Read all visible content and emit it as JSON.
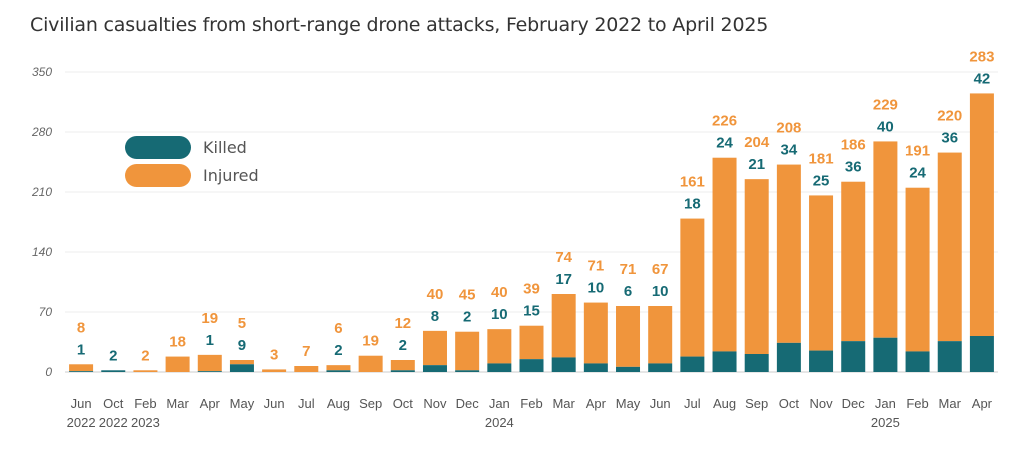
{
  "chart_data": {
    "type": "bar",
    "stacked": true,
    "title": "Civilian casualties from short-range drone attacks, February 2022 to April 2025",
    "ylim": [
      0,
      350
    ],
    "yticks": [
      0,
      70,
      140,
      210,
      280,
      350
    ],
    "grid": true,
    "legend_position": "top-left",
    "colors": {
      "Killed": "#166a74",
      "Injured": "#f0953c"
    },
    "categories": [
      [
        "Jun",
        "2022"
      ],
      [
        "Oct",
        "2022"
      ],
      [
        "Feb",
        "2023"
      ],
      [
        "Mar",
        ""
      ],
      [
        "Apr",
        ""
      ],
      [
        "May",
        ""
      ],
      [
        "Jun",
        ""
      ],
      [
        "Jul",
        ""
      ],
      [
        "Aug",
        ""
      ],
      [
        "Sep",
        ""
      ],
      [
        "Oct",
        ""
      ],
      [
        "Nov",
        ""
      ],
      [
        "Dec",
        ""
      ],
      [
        "Jan",
        "2024"
      ],
      [
        "Feb",
        ""
      ],
      [
        "Mar",
        ""
      ],
      [
        "Apr",
        ""
      ],
      [
        "May",
        ""
      ],
      [
        "Jun",
        ""
      ],
      [
        "Jul",
        ""
      ],
      [
        "Aug",
        ""
      ],
      [
        "Sep",
        ""
      ],
      [
        "Oct",
        ""
      ],
      [
        "Nov",
        ""
      ],
      [
        "Dec",
        ""
      ],
      [
        "Jan",
        "2025"
      ],
      [
        "Feb",
        ""
      ],
      [
        "Mar",
        ""
      ],
      [
        "Apr",
        ""
      ]
    ],
    "series": [
      {
        "name": "Killed",
        "values": [
          1,
          2,
          null,
          null,
          1,
          9,
          null,
          null,
          2,
          null,
          2,
          8,
          2,
          10,
          15,
          17,
          10,
          6,
          10,
          18,
          24,
          21,
          34,
          25,
          36,
          40,
          24,
          36,
          42
        ]
      },
      {
        "name": "Injured",
        "values": [
          8,
          null,
          2,
          18,
          19,
          5,
          3,
          7,
          6,
          19,
          12,
          40,
          45,
          40,
          39,
          74,
          71,
          71,
          67,
          161,
          226,
          204,
          208,
          181,
          186,
          229,
          191,
          220,
          283
        ]
      }
    ]
  }
}
